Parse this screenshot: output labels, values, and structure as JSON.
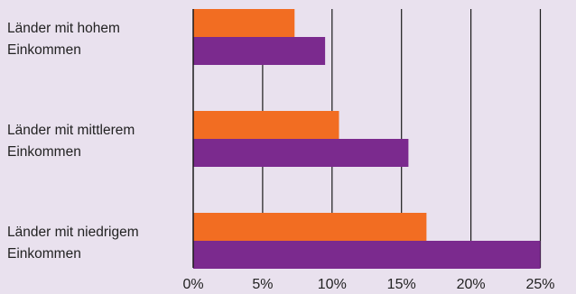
{
  "chart_data": {
    "type": "bar",
    "orientation": "horizontal",
    "categories": [
      [
        "Länder mit hohem",
        "Einkommen"
      ],
      [
        "Länder mit mittlerem",
        "Einkommen"
      ],
      [
        "Länder mit niedrigem",
        "Einkommen"
      ]
    ],
    "series": [
      {
        "color": "#f26d22",
        "values": [
          7.3,
          10.5,
          16.8
        ]
      },
      {
        "color": "#7b2a8e",
        "values": [
          9.5,
          15.5,
          25.0
        ]
      }
    ],
    "xlim": [
      0,
      27.5
    ],
    "x_ticks": [
      0,
      5,
      10,
      15,
      20,
      25
    ],
    "x_tick_labels": [
      "0%",
      "5%",
      "10%",
      "15%",
      "20%",
      "25%"
    ],
    "grid": "vertical",
    "legend": "none",
    "title": "",
    "xlabel": "",
    "ylabel": ""
  }
}
